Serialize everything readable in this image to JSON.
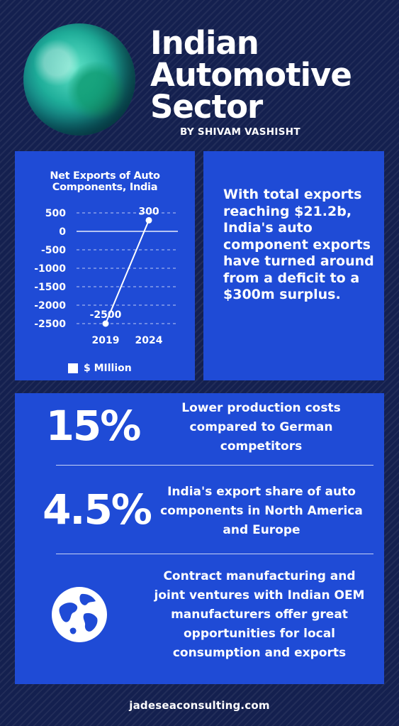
{
  "header": {
    "title_lines": [
      "Indian",
      "Automotive",
      "Sector"
    ],
    "byline": "BY SHIVAM VASHISHT"
  },
  "chart_data": {
    "type": "line",
    "title": "Net Exports of Auto Components, India",
    "title_lines": [
      "Net Exports of Auto",
      "Components, India"
    ],
    "x": [
      "2019",
      "2024"
    ],
    "series": [
      {
        "name": "$ MIllion",
        "values": [
          -2500,
          300
        ],
        "labels": [
          "-2500",
          "300"
        ]
      }
    ],
    "y_ticks": [
      "500",
      "0",
      "-500",
      "-1000",
      "-1500",
      "-2000",
      "-2500"
    ],
    "ylim": [
      -2500,
      500
    ],
    "grid": true,
    "legend": "bottom",
    "legend_label": "$ MIllion"
  },
  "summary": {
    "text": "With total exports reaching $21.2b, India's auto component exports have turned around from a deficit to  a $300m surplus."
  },
  "stats": [
    {
      "value": "15%",
      "text": "Lower production costs compared to German competitors"
    },
    {
      "value": "4.5%",
      "text": "India's export share of auto components in North America and Europe"
    },
    {
      "icon": "globe-icon",
      "text": "Contract manufacturing and joint ventures with Indian OEM manufacturers offer great opportunities for local consumption and exports"
    }
  ],
  "footer": {
    "text": "jadeseaconsulting.com"
  },
  "colors": {
    "background": "#14204f",
    "panel": "#1f4bd6",
    "text": "#ffffff"
  }
}
